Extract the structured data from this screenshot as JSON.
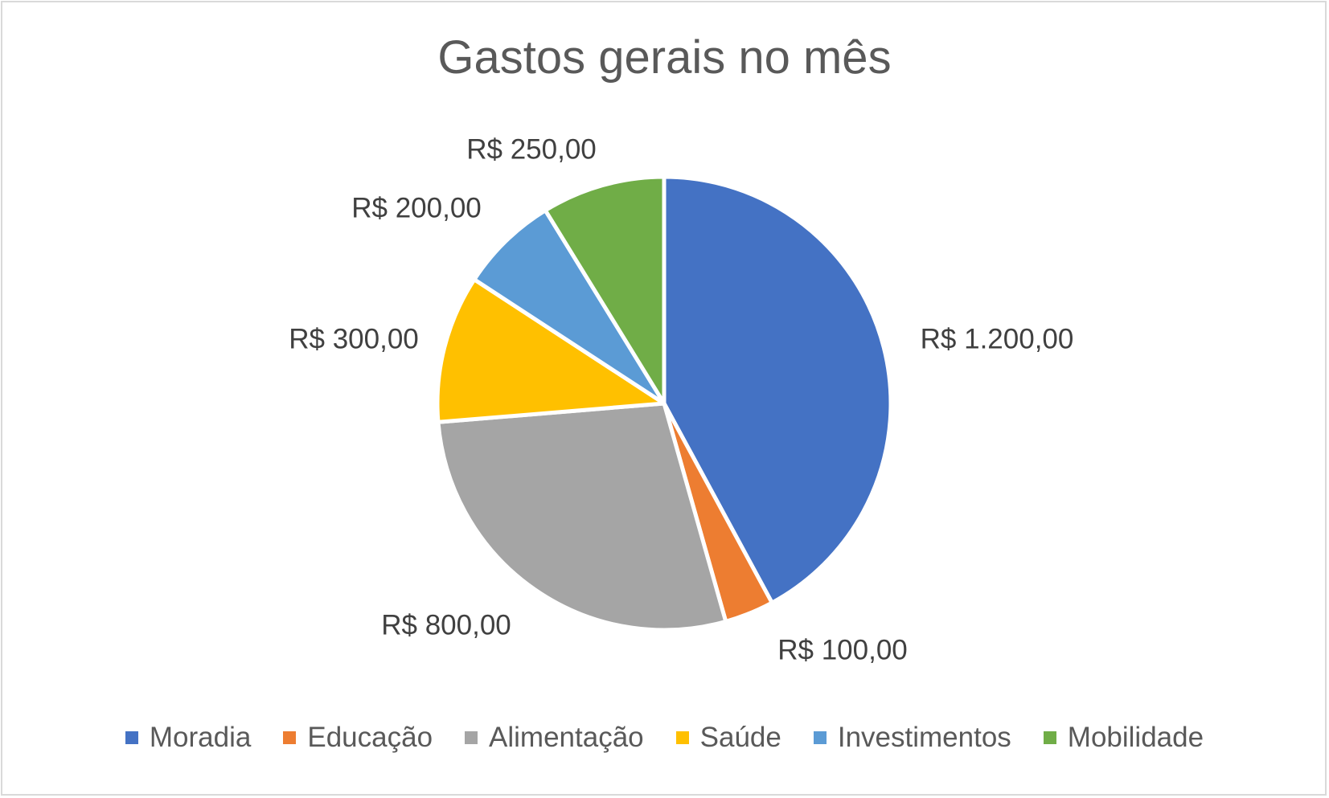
{
  "chart_data": {
    "type": "pie",
    "title": "Gastos gerais no mês",
    "categories": [
      "Moradia",
      "Educação",
      "Alimentação",
      "Saúde",
      "Investimentos",
      "Mobilidade"
    ],
    "values": [
      1200,
      100,
      800,
      300,
      200,
      250
    ],
    "data_labels": [
      "R$ 1.200,00",
      "R$ 100,00",
      "R$ 800,00",
      "R$ 300,00",
      "R$ 200,00",
      "R$ 250,00"
    ],
    "colors": [
      "#4472c4",
      "#ed7d31",
      "#a5a5a5",
      "#ffc000",
      "#5b9bd5",
      "#70ad47"
    ],
    "legend_position": "bottom",
    "start_angle": "12 o'clock, clockwise"
  }
}
